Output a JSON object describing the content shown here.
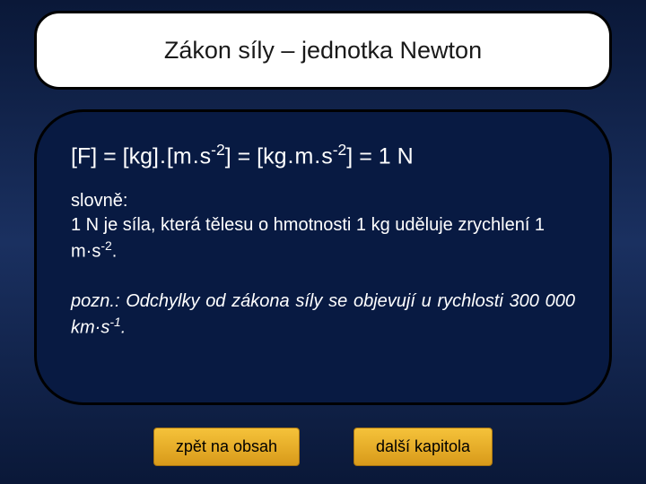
{
  "title": "Zákon síly – jednotka Newton",
  "formula": {
    "p1": "[F] = [kg]",
    "dot1": ".",
    "p2": "[m",
    "dot2": ".",
    "p3": "s",
    "exp1": "-2",
    "p4": "] = [kg",
    "dot3": ".",
    "p5": "m",
    "dot4": ".",
    "p6": "s",
    "exp2": "-2",
    "p7": "] = 1",
    "p8": "N"
  },
  "desc": {
    "l1": "slovně:",
    "l2a": "1 N je síla, která tělesu o hmotnosti 1 kg uděluje zrychlení 1 m",
    "l2b": "s",
    "exp": "-2",
    "l2c": "."
  },
  "note": {
    "t1": "pozn.",
    "t2": ": Odchylky od zákona síly se objevují u rychlosti 300 000 km",
    "t3": "s",
    "exp": "-1",
    "t4": "."
  },
  "buttons": {
    "back": "zpět na obsah",
    "next": "další kapitola"
  },
  "colors": {
    "title_bg": "#ffffff",
    "title_border": "#000000",
    "content_bg": "#081a42",
    "content_border": "#000000",
    "text_light": "#ffffff",
    "text_dark": "#191919",
    "btn_top": "#f5c23a",
    "btn_bottom": "#d89a1a",
    "page_bg_top": "#0a1838",
    "page_bg_mid": "#1a3060"
  },
  "fonts": {
    "title_size": 27,
    "formula_size": 25,
    "body_size": 20,
    "btn_size": 18
  }
}
